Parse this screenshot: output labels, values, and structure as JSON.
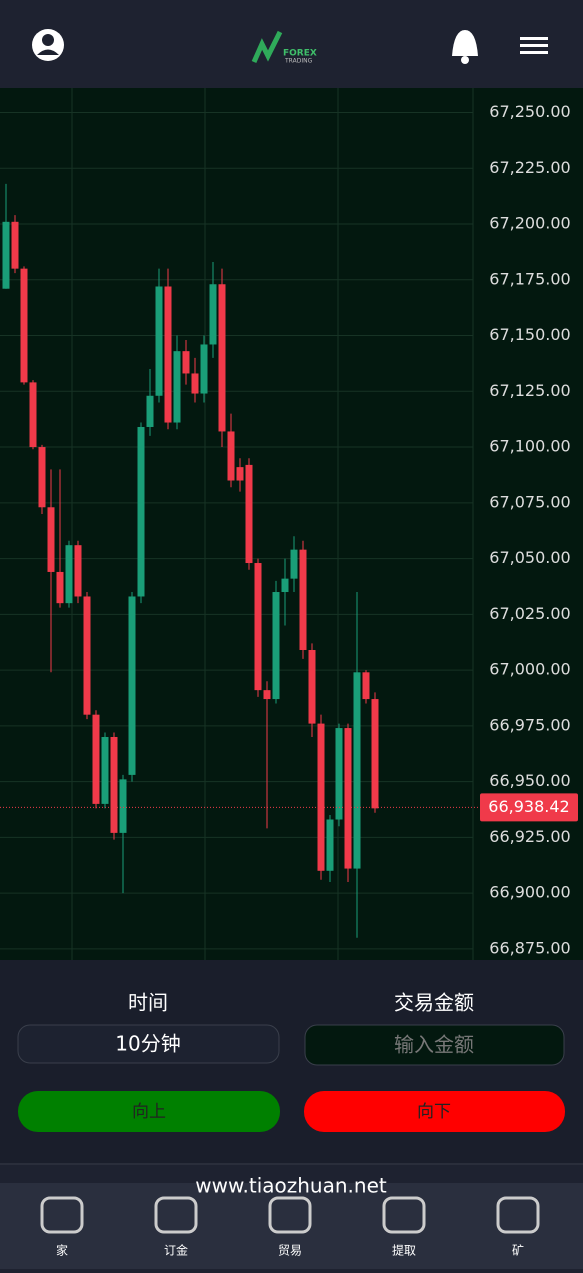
{
  "header": {
    "logo_top": "FOREX",
    "logo_bottom": "TRADING"
  },
  "chart_data": {
    "type": "candlestick",
    "up_color": "#1a9e78",
    "down_color": "#f03a4a",
    "open": [
      67171,
      67201,
      67180,
      67129,
      67100,
      67073,
      67044,
      67030,
      67056,
      67033,
      66980,
      66940,
      66970,
      66927,
      66953,
      67033,
      67109,
      67123,
      67172,
      67111,
      67143,
      67133,
      67124,
      67146,
      67173,
      67107,
      67091,
      67092,
      67048,
      66991,
      66987,
      67035,
      67041,
      67054,
      67009,
      66976,
      66910,
      66933,
      66974,
      66911,
      66999,
      66987
    ],
    "close": [
      67201,
      67180,
      67129,
      67100,
      67073,
      67044,
      67030,
      67056,
      67033,
      66980,
      66940,
      66970,
      66927,
      66951,
      67033,
      67109,
      67123,
      67172,
      67111,
      67143,
      67133,
      67124,
      67146,
      67173,
      67107,
      67085,
      67085,
      67048,
      66991,
      66987,
      67035,
      67041,
      67054,
      67009,
      66976,
      66910,
      66933,
      66974,
      66911,
      66999,
      66987,
      66938
    ],
    "high": [
      67218,
      67204,
      67181,
      67130,
      67101,
      67090,
      67090,
      67058,
      67058,
      67035,
      66982,
      66972,
      66972,
      66953,
      67035,
      67111,
      67135,
      67180,
      67180,
      67150,
      67148,
      67140,
      67150,
      67183,
      67180,
      67115,
      67095,
      67095,
      67050,
      66995,
      67040,
      67050,
      67060,
      67058,
      67012,
      66980,
      66935,
      66976,
      66976,
      67035,
      67000,
      66990
    ],
    "low": [
      67171,
      67178,
      67128,
      67099,
      67070,
      66999,
      67028,
      67028,
      67030,
      66978,
      66938,
      66938,
      66924,
      66900,
      66950,
      67030,
      67105,
      67120,
      67108,
      67108,
      67128,
      67120,
      67120,
      67140,
      67100,
      67082,
      67080,
      67045,
      66988,
      66929,
      66985,
      67020,
      67035,
      67005,
      66970,
      66906,
      66905,
      66930,
      66905,
      66880,
      66985,
      66936
    ],
    "ylim": [
      66870,
      67261
    ],
    "yticks": [
      {
        "value": 67250,
        "label": "67,250.00"
      },
      {
        "value": 67225,
        "label": "67,225.00"
      },
      {
        "value": 67200,
        "label": "67,200.00"
      },
      {
        "value": 67175,
        "label": "67,175.00"
      },
      {
        "value": 67150,
        "label": "67,150.00"
      },
      {
        "value": 67125,
        "label": "67,125.00"
      },
      {
        "value": 67100,
        "label": "67,100.00"
      },
      {
        "value": 67075,
        "label": "67,075.00"
      },
      {
        "value": 67050,
        "label": "67,050.00"
      },
      {
        "value": 67025,
        "label": "67,025.00"
      },
      {
        "value": 67000,
        "label": "67,000.00"
      },
      {
        "value": 66975,
        "label": "66,975.00"
      },
      {
        "value": 66950,
        "label": "66,950.00"
      },
      {
        "value": 66925,
        "label": "66,925.00"
      },
      {
        "value": 66900,
        "label": "66,900.00"
      },
      {
        "value": 66875,
        "label": "66,875.00"
      }
    ],
    "current_price": {
      "value": 66938.42,
      "label": "66,938.42"
    }
  },
  "form": {
    "time_label": "时间",
    "time_value": "10分钟",
    "amount_label": "交易金额",
    "amount_placeholder": "输入金额",
    "up_button": "向上",
    "down_button": "向下"
  },
  "watermark": "www.tiaozhuan.net",
  "nav": [
    "家",
    "订金",
    "贸易",
    "提取",
    "矿"
  ]
}
